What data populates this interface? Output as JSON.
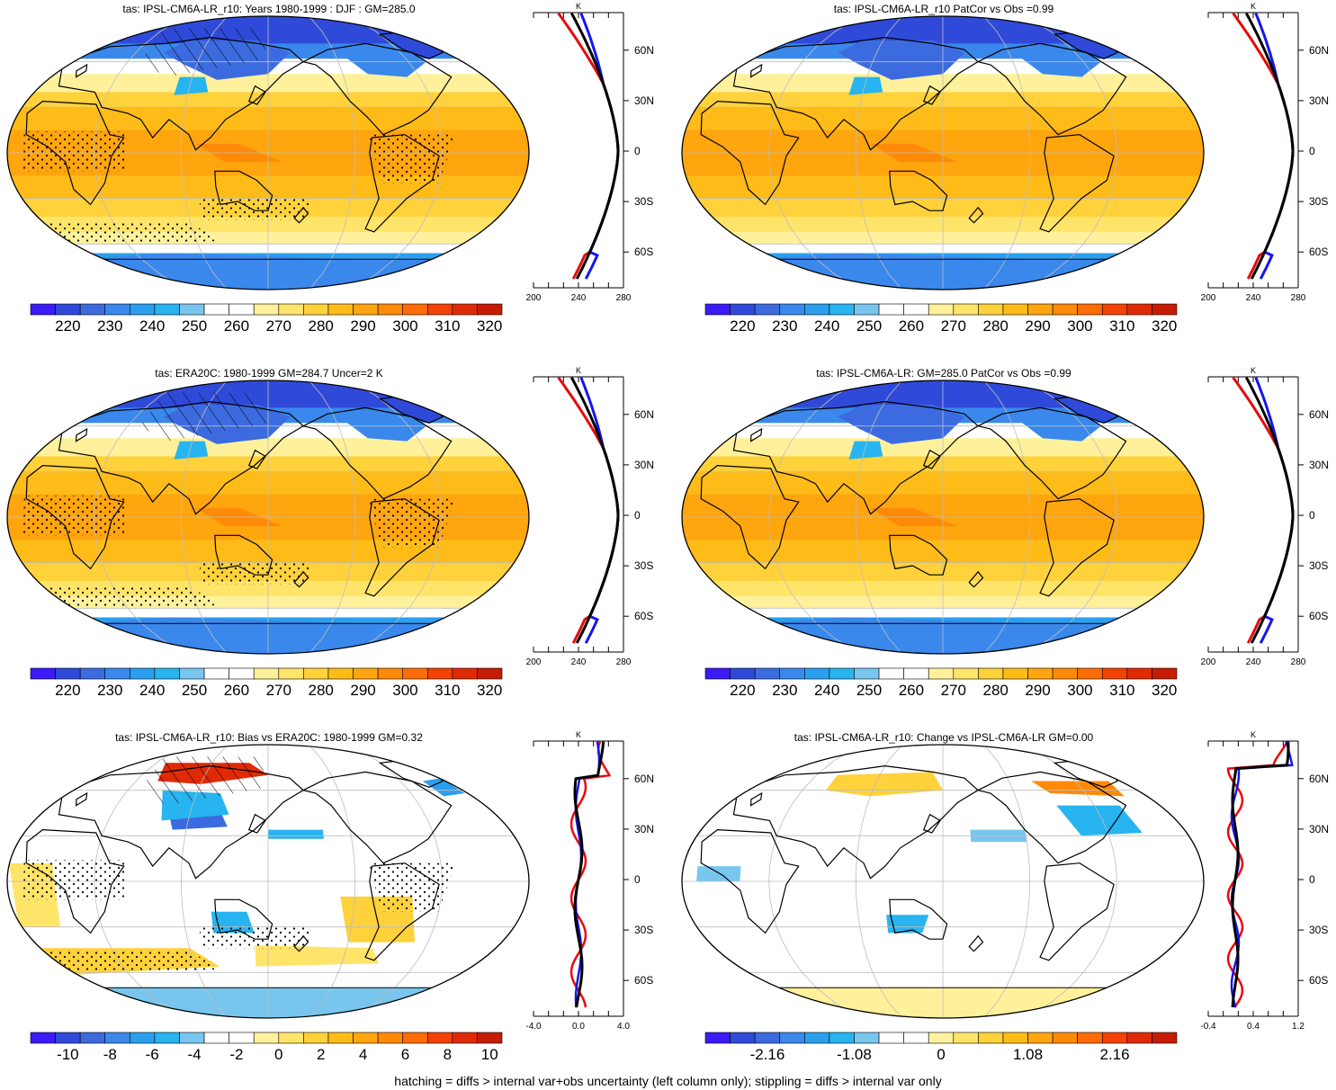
{
  "colors": {
    "temp_scale": [
      "#3a1bf7",
      "#2f4ad9",
      "#3c6be0",
      "#3a88ec",
      "#2a9fee",
      "#27b4f0",
      "#78c6ee",
      "#ffffff",
      "#ffffff",
      "#fff19c",
      "#ffe46a",
      "#ffd13a",
      "#ffbc18",
      "#ffa50e",
      "#ff8a08",
      "#ff6c06",
      "#f24205",
      "#e02a05",
      "#c71c04"
    ],
    "diff_scale": [
      "#3a1bf7",
      "#2f4ad9",
      "#3c6be0",
      "#3a88ec",
      "#2a9fee",
      "#27b4f0",
      "#78c6ee",
      "#ffffff",
      "#ffffff",
      "#fff19c",
      "#ffe46a",
      "#ffd13a",
      "#ffbc18",
      "#ffa50e",
      "#ff8a08",
      "#ff6c06",
      "#f24205",
      "#e02a05",
      "#c71c04"
    ],
    "profile_model": "#e8090b",
    "profile_obs": "#1515ee",
    "profile_ref": "#000000"
  },
  "panels": [
    {
      "id": "model",
      "title": "tas: IPSL-CM6A-LR_r10: Years 1980-1999 : DJF : GM=285.0",
      "map_kind": "abs",
      "hatched": true,
      "colorbar_labels": [
        "220",
        "230",
        "240",
        "250",
        "260",
        "270",
        "280",
        "290",
        "300",
        "310",
        "320"
      ],
      "profile": {
        "unit": "K",
        "ticks": [
          "200",
          "240",
          "280"
        ],
        "lat_labels": [
          "60N",
          "30N",
          "0",
          "30S",
          "60S"
        ]
      }
    },
    {
      "id": "model_patcor",
      "title": "tas: IPSL-CM6A-LR_r10 PatCor vs Obs =0.99",
      "map_kind": "abs",
      "hatched": false,
      "colorbar_labels": [
        "220",
        "230",
        "240",
        "250",
        "260",
        "270",
        "280",
        "290",
        "300",
        "310",
        "320"
      ],
      "profile": {
        "unit": "K",
        "ticks": [
          "200",
          "240",
          "280"
        ],
        "lat_labels": [
          "60N",
          "30N",
          "0",
          "30S",
          "60S"
        ]
      }
    },
    {
      "id": "obs",
      "title": "tas: ERA20C: 1980-1999 GM=284.7 Uncer=2 K",
      "map_kind": "abs",
      "hatched": true,
      "colorbar_labels": [
        "220",
        "230",
        "240",
        "250",
        "260",
        "270",
        "280",
        "290",
        "300",
        "310",
        "320"
      ],
      "profile": {
        "unit": "K",
        "ticks": [
          "200",
          "240",
          "280"
        ],
        "lat_labels": [
          "60N",
          "30N",
          "0",
          "30S",
          "60S"
        ]
      }
    },
    {
      "id": "reference",
      "title": "tas: IPSL-CM6A-LR: GM=285.0 PatCor vs Obs =0.99",
      "map_kind": "abs",
      "hatched": false,
      "colorbar_labels": [
        "220",
        "230",
        "240",
        "250",
        "260",
        "270",
        "280",
        "290",
        "300",
        "310",
        "320"
      ],
      "profile": {
        "unit": "K",
        "ticks": [
          "200",
          "240",
          "280"
        ],
        "lat_labels": [
          "60N",
          "30N",
          "0",
          "30S",
          "60S"
        ]
      }
    },
    {
      "id": "bias",
      "title": "tas: IPSL-CM6A-LR_r10: Bias vs ERA20C: 1980-1999 GM=0.32",
      "map_kind": "bias",
      "hatched": true,
      "colorbar_labels": [
        "-10",
        "-8",
        "-6",
        "-4",
        "-2",
        "0",
        "2",
        "4",
        "6",
        "8",
        "10"
      ],
      "profile": {
        "unit": "K",
        "ticks": [
          "-4.0",
          "0.0",
          "4.0"
        ],
        "lat_labels": [
          "60N",
          "30N",
          "0",
          "30S",
          "60S"
        ]
      }
    },
    {
      "id": "change",
      "title": "tas: IPSL-CM6A-LR_r10: Change vs IPSL-CM6A-LR GM=0.00",
      "map_kind": "change",
      "hatched": false,
      "colorbar_labels": [
        "-2.16",
        "-1.08",
        "0",
        "1.08",
        "2.16"
      ],
      "profile": {
        "unit": "K",
        "ticks": [
          "-0.4",
          "0.4",
          "1.2"
        ],
        "lat_labels": [
          "60N",
          "30N",
          "0",
          "30S",
          "60S"
        ]
      }
    }
  ],
  "footer": "hatching = diffs > internal var+obs uncertainty (left column only); stippling = diffs > internal var only"
}
